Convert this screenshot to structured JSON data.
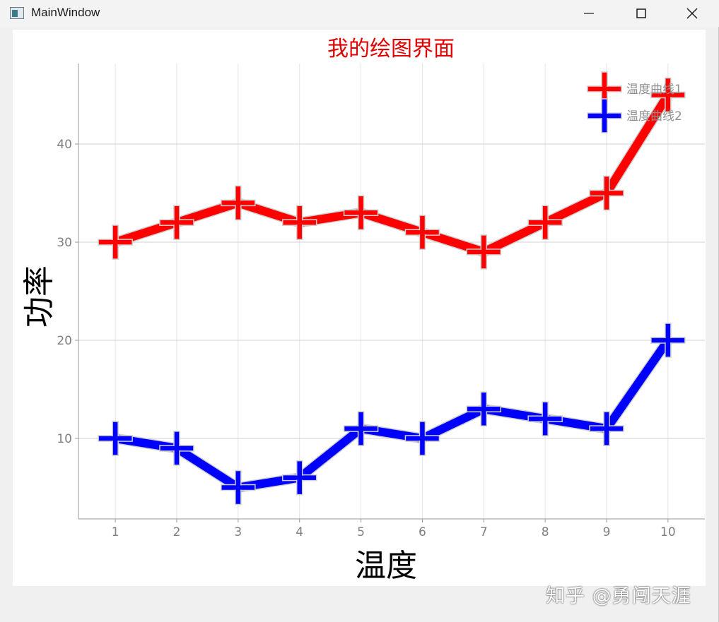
{
  "window": {
    "title": "MainWindow"
  },
  "watermark": "知乎 @勇闯天涯",
  "chart_data": {
    "type": "line",
    "title": "我的绘图界面",
    "xlabel": "温度",
    "ylabel": "功率",
    "x": [
      1,
      2,
      3,
      4,
      5,
      6,
      7,
      8,
      9,
      10
    ],
    "xlim": [
      0.4,
      10.6
    ],
    "ylim": [
      1.8,
      48.2
    ],
    "xticks": [
      1,
      2,
      3,
      4,
      5,
      6,
      7,
      8,
      9,
      10
    ],
    "yticks": [
      10,
      20,
      30,
      40
    ],
    "grid": true,
    "legend_position": "top-right",
    "marker": "cross",
    "series": [
      {
        "name": "温度曲线1",
        "color": "#ff0000",
        "values": [
          30,
          32,
          34,
          32,
          33,
          31,
          29,
          32,
          35,
          45
        ]
      },
      {
        "name": "温度曲线2",
        "color": "#0000ff",
        "values": [
          10,
          9,
          5,
          6,
          11,
          10,
          13,
          12,
          11,
          20
        ]
      }
    ],
    "colors": {
      "title": "#e00000",
      "tick": "#808080",
      "axis_label": "#000000",
      "legend_text": "#909090"
    }
  }
}
